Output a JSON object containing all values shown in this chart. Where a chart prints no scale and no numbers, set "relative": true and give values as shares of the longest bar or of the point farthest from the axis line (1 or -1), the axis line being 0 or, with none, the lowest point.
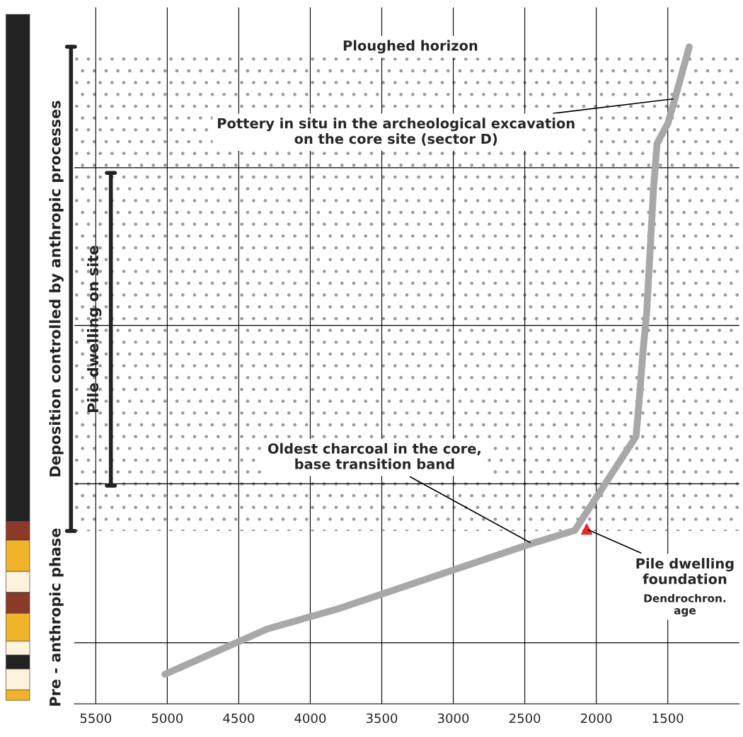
{
  "chart_data": {
    "type": "line",
    "relative": true,
    "series": [
      {
        "type": "line",
        "color": "#a8a8a8",
        "x": [
          5017,
          4300,
          3800,
          2450,
          2150,
          1722,
          1700,
          1672,
          1648,
          1600,
          1575,
          1500,
          1450,
          1350
        ],
        "values": [
          0.045,
          0.114,
          0.145,
          0.244,
          0.264,
          0.407,
          0.461,
          0.54,
          0.594,
          0.783,
          0.853,
          0.883,
          0.921,
          1.0
        ]
      },
      {
        "type": "scatter",
        "color": "#e8262a",
        "marker": "triangle",
        "x": [
          2067
        ],
        "values": [
          0.266
        ]
      }
    ],
    "xlim": [
      5650,
      1000
    ],
    "xticks": [
      5500,
      5000,
      4500,
      4000,
      3500,
      3000,
      2500,
      2000,
      1500
    ],
    "tick_labels": "x",
    "grid": "x",
    "ref_lines": [
      {
        "axis": "y",
        "value": 0.816
      },
      {
        "axis": "y",
        "value": 0.576
      },
      {
        "axis": "y",
        "value": 0.335
      },
      {
        "axis": "y",
        "value": 0.093
      }
    ],
    "bands": [
      {
        "axis": "y",
        "from": 0.263,
        "to": 0.984,
        "color": "#9a9a9a"
      }
    ],
    "annotations": [
      "Ploughed horizon",
      {
        "text": "Pottery in situ in the archeological excavation\non the core site (sector D)",
        "x": 1450,
        "y": 0.921
      },
      {
        "text": "Oldest charcoal in the core,\nbase transition band",
        "x": 2450,
        "y": 0.244
      },
      {
        "text": "Pile dwelling\nfoundation",
        "x": 2067,
        "y": 0.266
      },
      "Dendrochron.\nage",
      "Pre - anthropic phase",
      "Deposition controlled by anthropic processes",
      "Pile dwelling on site"
    ]
  }
}
